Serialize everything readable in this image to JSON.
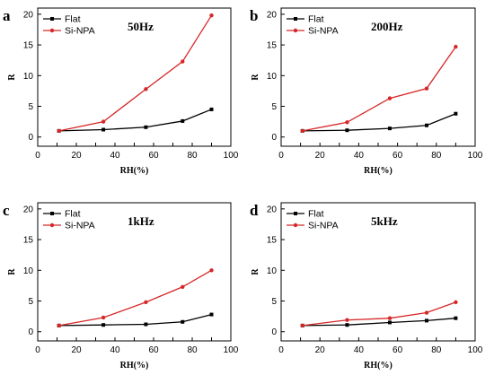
{
  "chart_data": [
    {
      "type": "line",
      "panel_label": "a",
      "annotation": "50Hz",
      "xlabel": "RH(%)",
      "ylabel": "R",
      "xlim": [
        0,
        100
      ],
      "ylim": [
        -1.5,
        21
      ],
      "xticks": [
        0,
        10,
        20,
        30,
        40,
        50,
        60,
        70,
        80,
        90,
        100
      ],
      "yticks": [
        0,
        5,
        10,
        15,
        20
      ],
      "x": [
        11,
        34,
        56,
        75,
        90
      ],
      "legend_position": "top-left",
      "series": [
        {
          "name": "Flat",
          "color": "#000000",
          "marker": "square",
          "values": [
            1.0,
            1.2,
            1.6,
            2.6,
            4.5
          ]
        },
        {
          "name": "Si-NPA",
          "color": "#d62728",
          "marker": "circle",
          "values": [
            1.0,
            2.5,
            7.8,
            12.3,
            19.8
          ]
        }
      ]
    },
    {
      "type": "line",
      "panel_label": "b",
      "annotation": "200Hz",
      "xlabel": "RH(%)",
      "ylabel": "R",
      "xlim": [
        0,
        100
      ],
      "ylim": [
        -1.5,
        21
      ],
      "xticks": [
        0,
        10,
        20,
        30,
        40,
        50,
        60,
        70,
        80,
        90,
        100
      ],
      "yticks": [
        0,
        5,
        10,
        15,
        20
      ],
      "x": [
        11,
        34,
        56,
        75,
        90
      ],
      "legend_position": "top-left",
      "series": [
        {
          "name": "Flat",
          "color": "#000000",
          "marker": "square",
          "values": [
            1.0,
            1.1,
            1.4,
            1.9,
            3.8
          ]
        },
        {
          "name": "Si-NPA",
          "color": "#d62728",
          "marker": "circle",
          "values": [
            1.0,
            2.4,
            6.3,
            7.9,
            14.7
          ]
        }
      ]
    },
    {
      "type": "line",
      "panel_label": "c",
      "annotation": "1kHz",
      "xlabel": "RH(%)",
      "ylabel": "R",
      "xlim": [
        0,
        100
      ],
      "ylim": [
        -1.5,
        21
      ],
      "xticks": [
        0,
        10,
        20,
        30,
        40,
        50,
        60,
        70,
        80,
        90,
        100
      ],
      "yticks": [
        0,
        5,
        10,
        15,
        20
      ],
      "x": [
        11,
        34,
        56,
        75,
        90
      ],
      "legend_position": "top-left",
      "series": [
        {
          "name": "Flat",
          "color": "#000000",
          "marker": "square",
          "values": [
            1.0,
            1.1,
            1.2,
            1.6,
            2.8
          ]
        },
        {
          "name": "Si-NPA",
          "color": "#d62728",
          "marker": "circle",
          "values": [
            1.0,
            2.3,
            4.8,
            7.3,
            10.0
          ]
        }
      ]
    },
    {
      "type": "line",
      "panel_label": "d",
      "annotation": "5kHz",
      "xlabel": "RH(%)",
      "ylabel": "R",
      "xlim": [
        0,
        100
      ],
      "ylim": [
        -1.5,
        21
      ],
      "xticks": [
        0,
        10,
        20,
        30,
        40,
        50,
        60,
        70,
        80,
        90,
        100
      ],
      "yticks": [
        0,
        5,
        10,
        15,
        20
      ],
      "x": [
        11,
        34,
        56,
        75,
        90
      ],
      "legend_position": "top-left",
      "series": [
        {
          "name": "Flat",
          "color": "#000000",
          "marker": "square",
          "values": [
            1.0,
            1.1,
            1.5,
            1.8,
            2.2
          ]
        },
        {
          "name": "Si-NPA",
          "color": "#d62728",
          "marker": "circle",
          "values": [
            1.0,
            1.9,
            2.2,
            3.1,
            4.8
          ]
        }
      ]
    }
  ]
}
